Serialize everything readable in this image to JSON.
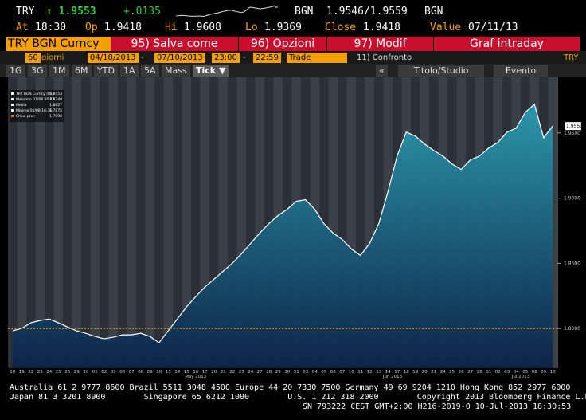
{
  "header": {
    "ticker": "TRY",
    "last": "↑ 1.9553",
    "change": "+.0135",
    "pair": "BGN",
    "bid_ask": "1.9546/1.9559",
    "currency": "BGN",
    "stats": [
      [
        "At",
        "18:30"
      ],
      [
        "Op",
        "1.9418"
      ],
      [
        "Hi",
        "1.9608"
      ],
      [
        "Lo",
        "1.9369"
      ],
      [
        "Close",
        "1.9418"
      ],
      [
        "Value",
        "07/11/13"
      ]
    ]
  },
  "toolbar": {
    "security": "TRY BGN Curncy",
    "buttons": [
      "95) Salva come",
      "96) Opzioni",
      "97) Modif"
    ],
    "title": "Graf intraday"
  },
  "settings": {
    "days": "60",
    "unit": "giorni",
    "start": "04/18/2013",
    "dash1": "-",
    "end": "07/10/2013",
    "from": "23:00",
    "dash2": "-",
    "to": "22:59",
    "field": "Trade",
    "compare": "11) Confronto",
    "right": "TRY"
  },
  "periods": [
    "1G",
    "3G",
    "1M",
    "6M",
    "YTD",
    "1A",
    "5A",
    "Mass",
    "Tick ▼"
  ],
  "tools": [
    "«",
    "Titolo/Studio",
    "Evento"
  ],
  "legend": [
    [
      "TRY BGN Curncy (R1)",
      "1.9553"
    ],
    [
      "Massimo 07/08 06:42",
      "1.9740"
    ],
    [
      "Media",
      "1.8627"
    ],
    [
      "Minimo 05/08 16:36",
      "1.7875"
    ]
  ],
  "chart_data": {
    "type": "area",
    "series": [
      {
        "name": "TRY BGN Curncy",
        "color": "#ffffff",
        "values": [
          1.7982,
          1.8,
          1.8043,
          1.8061,
          1.8073,
          1.8043,
          1.8012,
          1.7982,
          1.7963,
          1.7939,
          1.7921,
          1.7933,
          1.7951,
          1.7951,
          1.7963,
          1.7939,
          1.789,
          1.7982,
          1.8073,
          1.8165,
          1.8244,
          1.8317,
          1.8378,
          1.8439,
          1.85,
          1.8573,
          1.8652,
          1.8732,
          1.8805,
          1.8866,
          1.8915,
          1.8976,
          1.8988,
          1.8915,
          1.8805,
          1.8732,
          1.8683,
          1.861,
          1.8561,
          1.8652,
          1.8805,
          1.9049,
          1.9323,
          1.9506,
          1.9476,
          1.9415,
          1.9366,
          1.9323,
          1.9262,
          1.922,
          1.9293,
          1.9323,
          1.9384,
          1.9427,
          1.9506,
          1.9537,
          1.9659,
          1.972,
          1.9463,
          1.9553
        ]
      }
    ],
    "categories": [
      "18",
      "19",
      "22",
      "23",
      "24",
      "25",
      "26",
      "29",
      "30",
      "01",
      "02",
      "03",
      "06",
      "07",
      "08",
      "09",
      "10",
      "13",
      "14",
      "15",
      "16",
      "17",
      "20",
      "21",
      "22",
      "23",
      "24",
      "27",
      "28",
      "29",
      "30",
      "31",
      "03",
      "04",
      "05",
      "06",
      "07",
      "10",
      "11",
      "12",
      "13",
      "14",
      "17",
      "18",
      "19",
      "20",
      "21",
      "24",
      "25",
      "26",
      "27",
      "28",
      "01",
      "02",
      "03",
      "04",
      "05",
      "08",
      "09",
      "10"
    ],
    "months": [
      null,
      "May 2013",
      "Jun 2013",
      "Jul 2013"
    ],
    "last_label": "1.9553",
    "prev_close": {
      "name": "Chius prec",
      "value": 1.7998,
      "color": "#e08000"
    },
    "ylim": [
      1.7695,
      1.9927
    ],
    "yticks": [
      {
        "value": 1.8,
        "label": "1.8000"
      },
      {
        "value": 1.85,
        "label": "1.8500"
      },
      {
        "value": 1.9,
        "label": "1.9000"
      },
      {
        "value": 1.95,
        "label": "1.9500"
      }
    ]
  },
  "footer": [
    "Australia 61 2 9777 8600 Brazil 5511 3048 4500 Europe 44 20 7330 7500 Germany 49 69 9204 1210 Hong Kong 852 2977 6000",
    "Japan 81 3 3201 8900        Singapore 65 6212 1000        U.S. 1 212 318 2000        Copyright 2013 Bloomberg Finance L.P.",
    "SN 793222 CEST GMT+2:00 H216-2019-0 10-Jul-2013 18:30:53"
  ]
}
